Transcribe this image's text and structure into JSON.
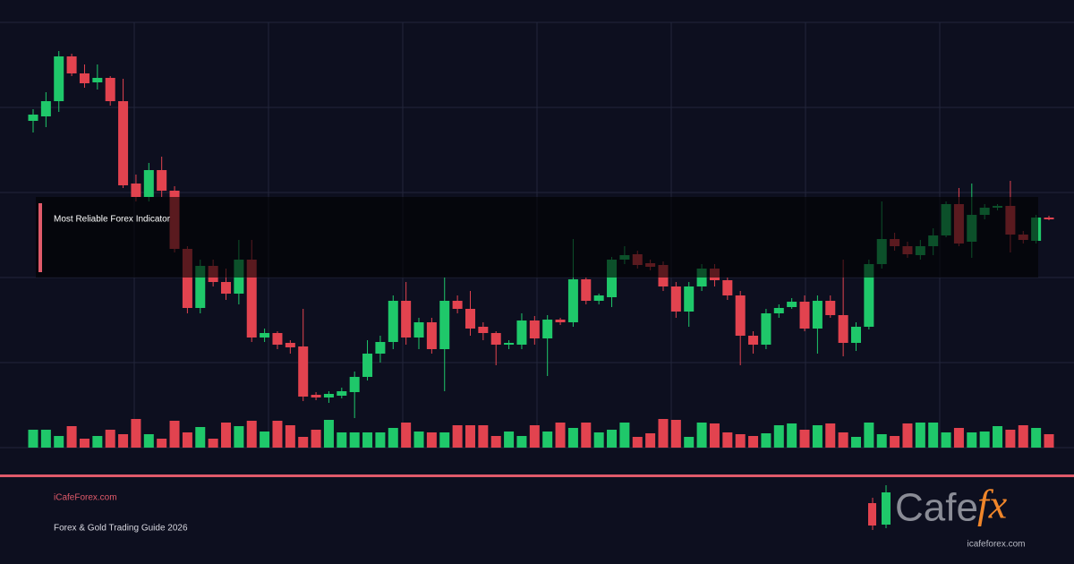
{
  "chart_data": {
    "type": "candlestick",
    "open": [
      365,
      370,
      387,
      437,
      418,
      408,
      413,
      387,
      295,
      280,
      310,
      287,
      222,
      156,
      203,
      185,
      172,
      210,
      123,
      128,
      117,
      113,
      59,
      56,
      58,
      62,
      79,
      105,
      118,
      164,
      123,
      140,
      110,
      164,
      155,
      135,
      128,
      115,
      115,
      142,
      122,
      143,
      140,
      188,
      164,
      168,
      210,
      216,
      206,
      204,
      180,
      152,
      180,
      200,
      187,
      170,
      125,
      115,
      150,
      157,
      163,
      133,
      164,
      148,
      117,
      135,
      205,
      233,
      225,
      215,
      225,
      237,
      272,
      230,
      260,
      268,
      270,
      238,
      231,
      257
    ],
    "high": [
      378,
      397,
      443,
      440,
      428,
      428,
      415,
      412,
      305,
      318,
      325,
      292,
      225,
      210,
      210,
      200,
      232,
      232,
      133,
      130,
      120,
      155,
      62,
      63,
      67,
      85,
      120,
      125,
      170,
      185,
      145,
      145,
      190,
      170,
      175,
      140,
      130,
      120,
      150,
      147,
      148,
      145,
      233,
      190,
      172,
      213,
      225,
      220,
      210,
      208,
      185,
      185,
      205,
      205,
      190,
      175,
      130,
      155,
      160,
      167,
      170,
      170,
      170,
      210,
      140,
      210,
      275,
      240,
      230,
      232,
      245,
      275,
      290,
      295,
      272,
      272,
      298,
      242,
      260,
      259
    ],
    "low": [
      352,
      358,
      375,
      415,
      402,
      400,
      382,
      290,
      275,
      275,
      280,
      218,
      150,
      150,
      180,
      165,
      160,
      118,
      118,
      110,
      105,
      52,
      53,
      50,
      55,
      33,
      75,
      95,
      110,
      115,
      110,
      105,
      63,
      150,
      125,
      120,
      92,
      110,
      110,
      115,
      80,
      137,
      135,
      160,
      160,
      157,
      205,
      200,
      198,
      175,
      145,
      135,
      175,
      180,
      165,
      92,
      105,
      110,
      145,
      155,
      130,
      105,
      145,
      102,
      108,
      132,
      200,
      220,
      212,
      210,
      215,
      235,
      225,
      212,
      255,
      265,
      218,
      228,
      228,
      254
    ],
    "close": [
      372,
      387,
      437,
      418,
      407,
      413,
      387,
      293,
      280,
      310,
      287,
      222,
      156,
      203,
      185,
      172,
      210,
      123,
      128,
      115,
      112,
      57,
      56,
      60,
      63,
      79,
      105,
      118,
      164,
      123,
      140,
      110,
      164,
      155,
      133,
      128,
      115,
      117,
      142,
      122,
      143,
      140,
      188,
      164,
      170,
      210,
      215,
      204,
      202,
      180,
      152,
      180,
      200,
      187,
      170,
      125,
      115,
      150,
      156,
      163,
      133,
      164,
      148,
      117,
      135,
      205,
      233,
      225,
      216,
      225,
      237,
      272,
      228,
      260,
      268,
      270,
      238,
      232,
      257,
      255
    ],
    "volume": [
      20,
      20,
      13,
      24,
      10,
      13,
      20,
      15,
      32,
      15,
      10,
      30,
      17,
      23,
      10,
      28,
      24,
      30,
      18,
      30,
      25,
      12,
      20,
      31,
      17,
      17,
      17,
      17,
      22,
      28,
      18,
      17,
      17,
      25,
      25,
      25,
      13,
      18,
      13,
      25,
      18,
      28,
      22,
      28,
      17,
      20,
      28,
      12,
      16,
      32,
      31,
      12,
      28,
      27,
      17,
      15,
      13,
      16,
      25,
      27,
      20,
      25,
      27,
      17,
      12,
      28,
      15,
      13,
      27,
      28,
      28,
      17,
      22,
      17,
      18,
      24,
      20,
      25,
      22,
      15
    ],
    "ylim": [
      0,
      475
    ],
    "volume_ylim": [
      0,
      40
    ],
    "up_color": "#1fc86a",
    "down_color": "#e2434f"
  },
  "overlay": {
    "label": "Most Reliable Forex Indicator"
  },
  "footer": {
    "site": "iCafeForex.com",
    "tagline": "Forex & Gold Trading Guide 2026"
  },
  "logo": {
    "brand": "Cafe",
    "accent": "fx",
    "url": "icafeforex.com"
  }
}
